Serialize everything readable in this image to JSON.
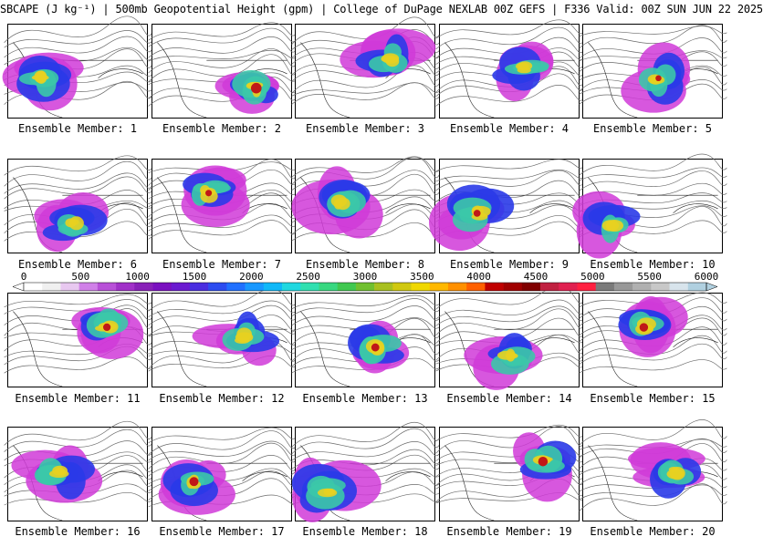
{
  "title": "SBCAPE (J kg⁻¹) | 500mb Geopotential Height (gpm) | College of DuPage NEXLAB 00Z GEFS | F336 Valid: 00Z SUN JUN 22 2025",
  "colorbar": {
    "tick_labels": [
      "0",
      "500",
      "1000",
      "1500",
      "2000",
      "2500",
      "3000",
      "3500",
      "4000",
      "4500",
      "5000",
      "5500",
      "6000"
    ],
    "colors": [
      "#ffffff",
      "#f0f0f0",
      "#e8c8f0",
      "#d080e8",
      "#b850d8",
      "#a030c8",
      "#8820b8",
      "#7a10c0",
      "#6a1ad0",
      "#4a2ee0",
      "#2c4cf0",
      "#2070ff",
      "#1898ff",
      "#10b8f8",
      "#20d8e0",
      "#30e0b0",
      "#38d880",
      "#40c850",
      "#70c030",
      "#a8c020",
      "#d0c810",
      "#f0d800",
      "#ffb800",
      "#ff9000",
      "#ff6000",
      "#c00000",
      "#a00000",
      "#800000",
      "#c02040",
      "#e02050",
      "#ff2040",
      "#7a7a7a",
      "#989898",
      "#b0b0b0",
      "#c8c8c8",
      "#d8e4ec",
      "#b0d0e0"
    ]
  },
  "members": [
    {
      "label": "Ensemble Member: 1"
    },
    {
      "label": "Ensemble Member: 2"
    },
    {
      "label": "Ensemble Member: 3"
    },
    {
      "label": "Ensemble Member: 4"
    },
    {
      "label": "Ensemble Member: 5"
    },
    {
      "label": "Ensemble Member: 6"
    },
    {
      "label": "Ensemble Member: 7"
    },
    {
      "label": "Ensemble Member: 8"
    },
    {
      "label": "Ensemble Member: 9"
    },
    {
      "label": "Ensemble Member: 10"
    },
    {
      "label": "Ensemble Member: 11"
    },
    {
      "label": "Ensemble Member: 12"
    },
    {
      "label": "Ensemble Member: 13"
    },
    {
      "label": "Ensemble Member: 14"
    },
    {
      "label": "Ensemble Member: 15"
    },
    {
      "label": "Ensemble Member: 16"
    },
    {
      "label": "Ensemble Member: 17"
    },
    {
      "label": "Ensemble Member: 18"
    },
    {
      "label": "Ensemble Member: 19"
    },
    {
      "label": "Ensemble Member: 20"
    }
  ],
  "cape_colors": {
    "low": "#d03ad8",
    "mid": "#2a3ae8",
    "high": "#3cc8a8",
    "peak": "#e8d020",
    "max": "#c01818"
  }
}
